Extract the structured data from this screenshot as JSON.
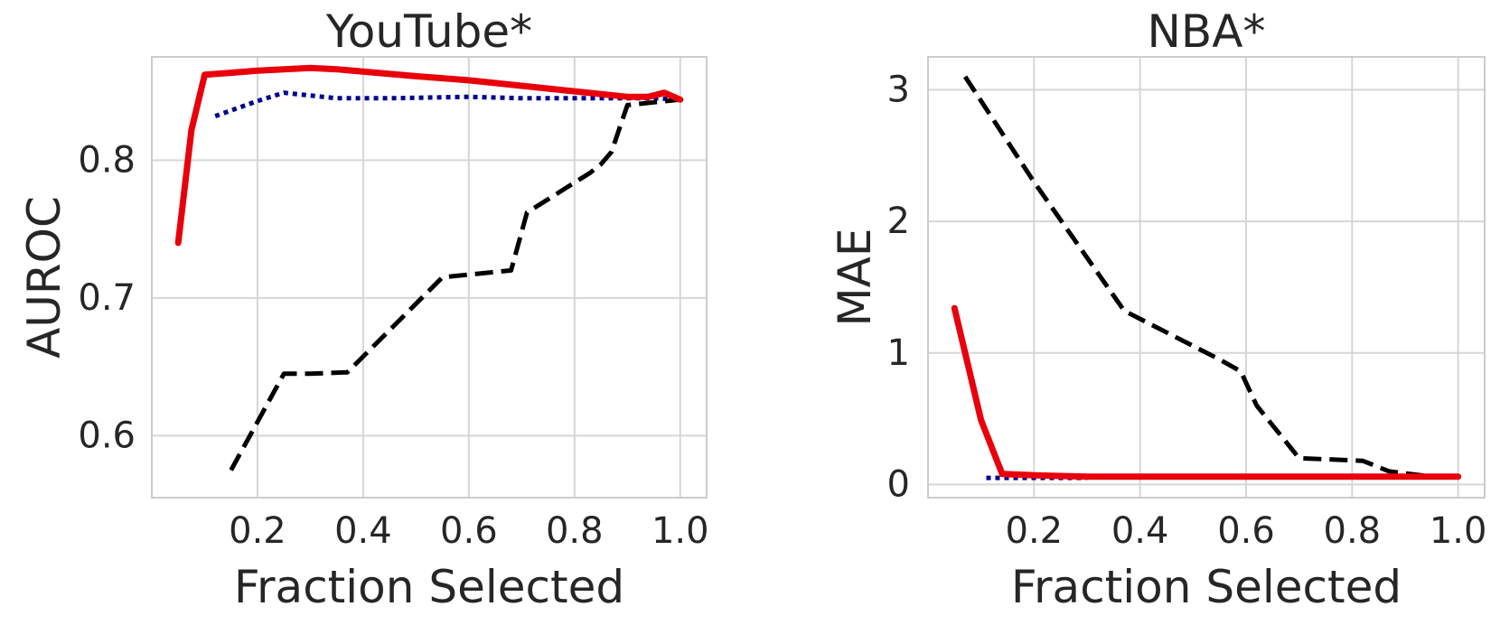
{
  "chart_data": [
    {
      "type": "line",
      "title": "YouTube*",
      "xlabel": "Fraction Selected",
      "ylabel": "AUROC",
      "xlim": [
        0.0,
        1.05
      ],
      "ylim": [
        0.555,
        0.875
      ],
      "xticks": [
        0.2,
        0.4,
        0.6,
        0.8,
        1.0
      ],
      "xtick_labels": [
        "0.2",
        "0.4",
        "0.6",
        "0.8",
        "1.0"
      ],
      "yticks": [
        0.6,
        0.7,
        0.8
      ],
      "ytick_labels": [
        "0.6",
        "0.7",
        "0.8"
      ],
      "grid": true,
      "series": [
        {
          "style": "solid",
          "color": "#e8000b",
          "x": [
            0.05,
            0.075,
            0.1,
            0.2,
            0.3,
            0.35,
            0.5,
            0.6,
            0.7,
            0.8,
            0.9,
            0.94,
            0.97,
            1.0
          ],
          "y": [
            0.74,
            0.822,
            0.862,
            0.865,
            0.867,
            0.866,
            0.861,
            0.858,
            0.854,
            0.85,
            0.846,
            0.846,
            0.849,
            0.844
          ]
        },
        {
          "style": "dotted",
          "color": "#00008b",
          "x": [
            0.12,
            0.2,
            0.25,
            0.35,
            0.45,
            0.6,
            0.7,
            0.8,
            0.9,
            0.95,
            1.0
          ],
          "y": [
            0.832,
            0.843,
            0.849,
            0.845,
            0.845,
            0.846,
            0.845,
            0.845,
            0.845,
            0.845,
            0.844
          ]
        },
        {
          "style": "dashed",
          "color": "#000000",
          "x": [
            0.15,
            0.25,
            0.3,
            0.37,
            0.55,
            0.6,
            0.68,
            0.71,
            0.83,
            0.85,
            0.87,
            0.9,
            0.95,
            1.0
          ],
          "y": [
            0.575,
            0.645,
            0.645,
            0.646,
            0.715,
            0.717,
            0.72,
            0.762,
            0.791,
            0.797,
            0.806,
            0.84,
            0.842,
            0.844
          ]
        }
      ]
    },
    {
      "type": "line",
      "title": "NBA*",
      "xlabel": "Fraction Selected",
      "ylabel": "MAE",
      "xlim": [
        0.0,
        1.05
      ],
      "ylim": [
        -0.1,
        3.25
      ],
      "xticks": [
        0.2,
        0.4,
        0.6,
        0.8,
        1.0
      ],
      "xtick_labels": [
        "0.2",
        "0.4",
        "0.6",
        "0.8",
        "1.0"
      ],
      "yticks": [
        0,
        1,
        2,
        3
      ],
      "ytick_labels": [
        "0",
        "1",
        "2",
        "3"
      ],
      "grid": true,
      "series": [
        {
          "style": "solid",
          "color": "#e8000b",
          "x": [
            0.05,
            0.1,
            0.14,
            0.2,
            0.3,
            0.5,
            0.7,
            0.9,
            1.0
          ],
          "y": [
            1.34,
            0.49,
            0.08,
            0.07,
            0.06,
            0.06,
            0.06,
            0.06,
            0.06
          ]
        },
        {
          "style": "dotted",
          "color": "#00008b",
          "x": [
            0.11,
            0.14,
            0.2,
            0.3
          ],
          "y": [
            0.05,
            0.05,
            0.05,
            0.05
          ]
        },
        {
          "style": "dashed",
          "color": "#000000",
          "x": [
            0.07,
            0.2,
            0.37,
            0.55,
            0.59,
            0.62,
            0.7,
            0.82,
            0.87,
            0.95,
            1.0
          ],
          "y": [
            3.1,
            2.3,
            1.32,
            0.95,
            0.86,
            0.6,
            0.2,
            0.18,
            0.1,
            0.06,
            0.06
          ]
        }
      ]
    }
  ]
}
